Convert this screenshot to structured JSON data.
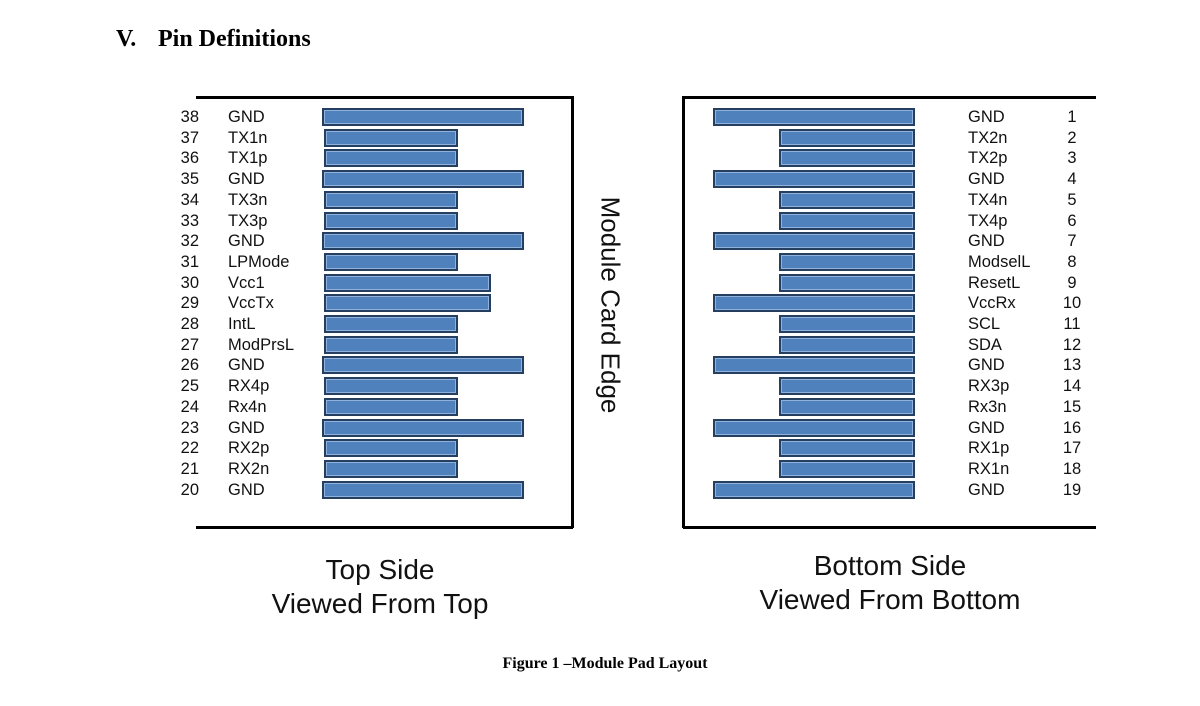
{
  "section": {
    "number": "V.",
    "title": "Pin Definitions"
  },
  "side_label": "Module Card Edge",
  "top_side": {
    "caption_line1": "Top Side",
    "caption_line2": "Viewed From Top",
    "pins": [
      {
        "num": "38",
        "label": "GND",
        "pad": "long"
      },
      {
        "num": "37",
        "label": "TX1n",
        "pad": "short"
      },
      {
        "num": "36",
        "label": "TX1p",
        "pad": "short"
      },
      {
        "num": "35",
        "label": "GND",
        "pad": "long"
      },
      {
        "num": "34",
        "label": "TX3n",
        "pad": "short"
      },
      {
        "num": "33",
        "label": "TX3p",
        "pad": "short"
      },
      {
        "num": "32",
        "label": "GND",
        "pad": "long"
      },
      {
        "num": "31",
        "label": "LPMode",
        "pad": "short"
      },
      {
        "num": "30",
        "label": "Vcc1",
        "pad": "medium"
      },
      {
        "num": "29",
        "label": "VccTx",
        "pad": "medium"
      },
      {
        "num": "28",
        "label": "IntL",
        "pad": "short"
      },
      {
        "num": "27",
        "label": "ModPrsL",
        "pad": "short"
      },
      {
        "num": "26",
        "label": "GND",
        "pad": "long"
      },
      {
        "num": "25",
        "label": "RX4p",
        "pad": "short"
      },
      {
        "num": "24",
        "label": "Rx4n",
        "pad": "short"
      },
      {
        "num": "23",
        "label": "GND",
        "pad": "long"
      },
      {
        "num": "22",
        "label": "RX2p",
        "pad": "short"
      },
      {
        "num": "21",
        "label": "RX2n",
        "pad": "short"
      },
      {
        "num": "20",
        "label": "GND",
        "pad": "long"
      }
    ]
  },
  "bottom_side": {
    "caption_line1": "Bottom Side",
    "caption_line2": "Viewed From Bottom",
    "pins": [
      {
        "num": "1",
        "label": "GND",
        "pad": "long"
      },
      {
        "num": "2",
        "label": "TX2n",
        "pad": "short"
      },
      {
        "num": "3",
        "label": "TX2p",
        "pad": "short"
      },
      {
        "num": "4",
        "label": "GND",
        "pad": "long"
      },
      {
        "num": "5",
        "label": "TX4n",
        "pad": "short"
      },
      {
        "num": "6",
        "label": "TX4p",
        "pad": "short"
      },
      {
        "num": "7",
        "label": "GND",
        "pad": "long"
      },
      {
        "num": "8",
        "label": "ModselL",
        "pad": "short"
      },
      {
        "num": "9",
        "label": "ResetL",
        "pad": "short"
      },
      {
        "num": "10",
        "label": "VccRx",
        "pad": "long"
      },
      {
        "num": "11",
        "label": "SCL",
        "pad": "short"
      },
      {
        "num": "12",
        "label": "SDA",
        "pad": "short"
      },
      {
        "num": "13",
        "label": "GND",
        "pad": "long"
      },
      {
        "num": "14",
        "label": "RX3p",
        "pad": "short"
      },
      {
        "num": "15",
        "label": "Rx3n",
        "pad": "short"
      },
      {
        "num": "16",
        "label": "GND",
        "pad": "long"
      },
      {
        "num": "17",
        "label": "RX1p",
        "pad": "short"
      },
      {
        "num": "18",
        "label": "RX1n",
        "pad": "short"
      },
      {
        "num": "19",
        "label": "GND",
        "pad": "long"
      }
    ]
  },
  "figure_caption": "Figure 1 –Module Pad Layout",
  "colors": {
    "pad_fill": "#4f81bd",
    "pad_border": "#243f60"
  }
}
